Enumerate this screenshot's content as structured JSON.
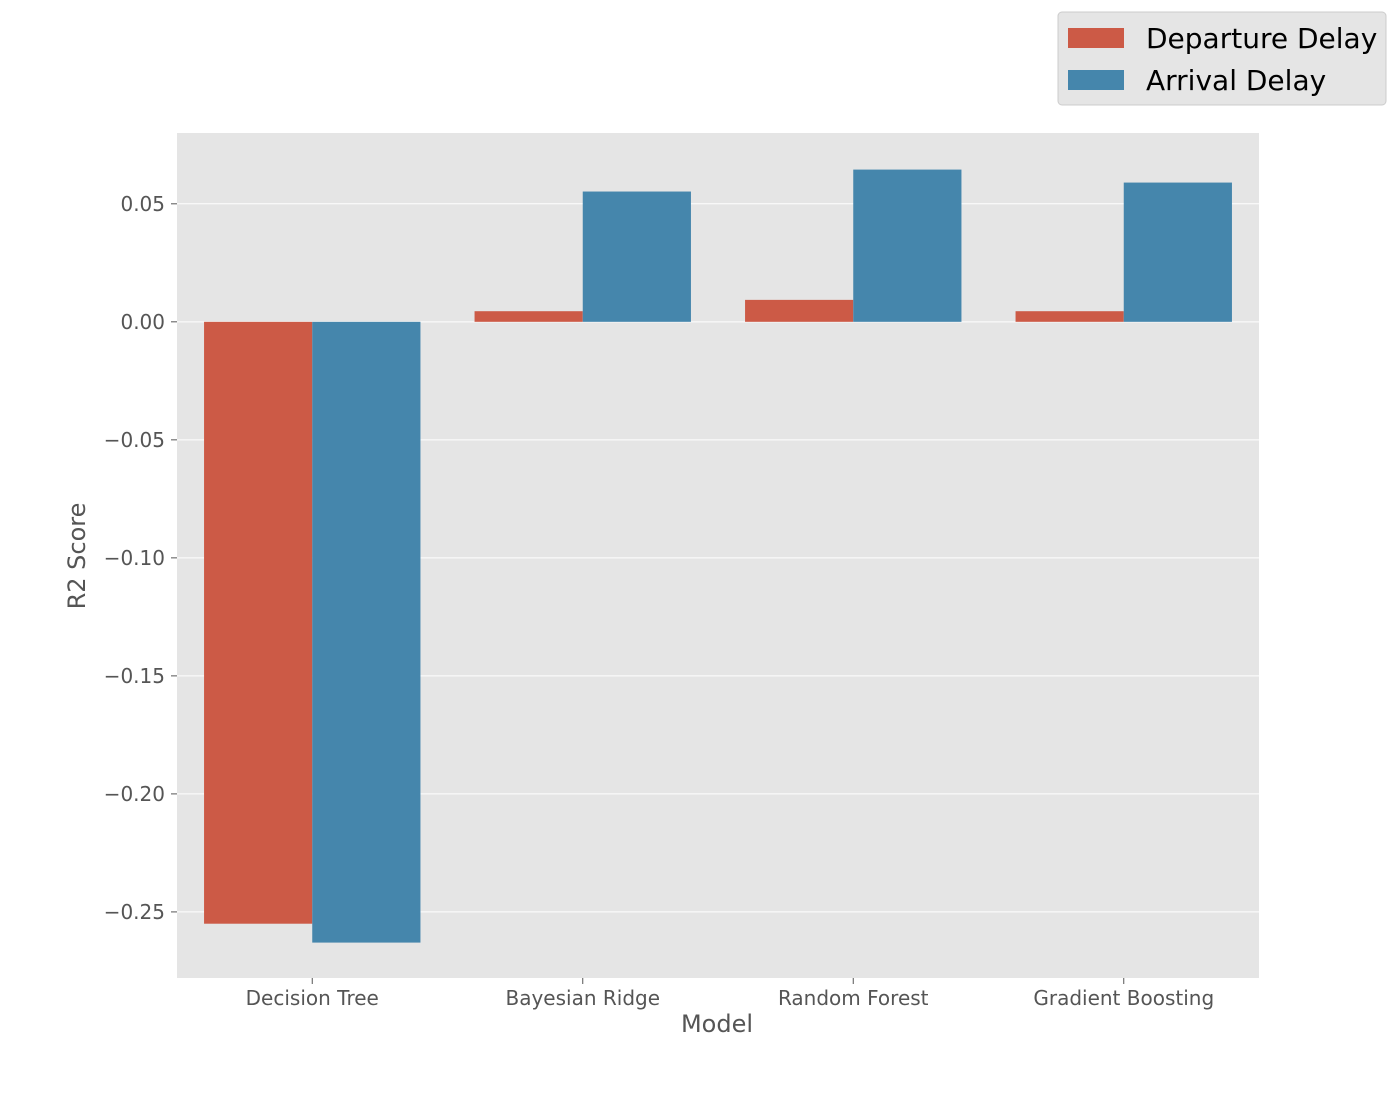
{
  "chart_data": {
    "type": "bar",
    "categories": [
      "Decision Tree",
      "Bayesian Ridge",
      "Random Forest",
      "Gradient Boosting"
    ],
    "series": [
      {
        "name": "Departure Delay",
        "color": "#cc5a46",
        "values": [
          -0.255,
          0.0045,
          0.0093,
          0.0045
        ]
      },
      {
        "name": "Arrival Delay",
        "color": "#4586ac",
        "values": [
          -0.263,
          0.0552,
          0.0645,
          0.059
        ]
      }
    ],
    "title": "",
    "xlabel": "Model",
    "ylabel": "R2 Score",
    "ylim": [
      -0.278,
      0.08
    ],
    "yticks": [
      0.05,
      0.0,
      -0.05,
      -0.1,
      -0.15,
      -0.2,
      -0.25
    ],
    "ytick_labels": [
      "0.05",
      "0.00",
      "−0.05",
      "−0.10",
      "−0.15",
      "−0.20",
      "−0.25"
    ],
    "grid": true,
    "legend_position": "top-right, outside plot area",
    "plot_background": "#e5e5e5"
  }
}
